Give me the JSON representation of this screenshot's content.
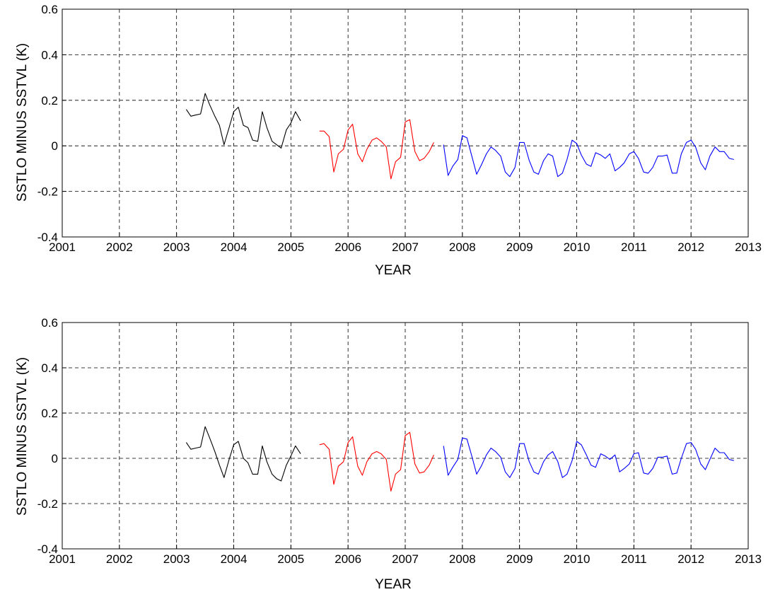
{
  "colors": {
    "series_2003_2005": "#000000",
    "series_2005_2007": "#ff0000",
    "series_2007_2012": "#0000ff",
    "grid": "#000000",
    "background": "#ffffff"
  },
  "chart_data": [
    {
      "type": "line",
      "title": "",
      "xlabel": "YEAR",
      "ylabel": "SSTLO MINUS  SSTVL  (K)",
      "xlim": [
        2001,
        2013
      ],
      "ylim": [
        -0.4,
        0.6
      ],
      "x_ticks": [
        2001,
        2002,
        2003,
        2004,
        2005,
        2006,
        2007,
        2008,
        2009,
        2010,
        2011,
        2012,
        2013
      ],
      "x_tick_labels": [
        "2001",
        "2002",
        "2003",
        "2004",
        "2005",
        "2006",
        "2007",
        "2008",
        "2009",
        "2010",
        "2011",
        "2012",
        "2013"
      ],
      "y_ticks": [
        -0.4,
        -0.2,
        0,
        0.2,
        0.4,
        0.6
      ],
      "y_tick_labels": [
        "-0.4",
        "-0.2",
        "0",
        "0.2",
        "0.4",
        "0.6"
      ],
      "grid": true,
      "grid_style": "dashed",
      "series": [
        {
          "color": "#000000",
          "x": [
            2003.17,
            2003.25,
            2003.33,
            2003.42,
            2003.5,
            2003.58,
            2003.67,
            2003.75,
            2003.83,
            2003.92,
            2004.0,
            2004.08,
            2004.17,
            2004.25,
            2004.33,
            2004.42,
            2004.5,
            2004.58,
            2004.67,
            2004.75,
            2004.83,
            2004.92,
            2005.0,
            2005.08,
            2005.17
          ],
          "y": [
            0.16,
            0.13,
            0.135,
            0.14,
            0.23,
            0.18,
            0.13,
            0.09,
            0.005,
            0.08,
            0.15,
            0.17,
            0.09,
            0.08,
            0.025,
            0.02,
            0.15,
            0.08,
            0.02,
            0.005,
            -0.01,
            0.07,
            0.1,
            0.15,
            0.11
          ]
        },
        {
          "color": "#ff0000",
          "x": [
            2005.5,
            2005.58,
            2005.67,
            2005.75,
            2005.83,
            2005.92,
            2006.0,
            2006.08,
            2006.17,
            2006.25,
            2006.33,
            2006.42,
            2006.5,
            2006.58,
            2006.67,
            2006.75,
            2006.83,
            2006.92,
            2007.0,
            2007.08,
            2007.17,
            2007.25,
            2007.33,
            2007.42,
            2007.5
          ],
          "y": [
            0.065,
            0.065,
            0.04,
            -0.115,
            -0.035,
            -0.015,
            0.07,
            0.095,
            -0.035,
            -0.07,
            -0.015,
            0.025,
            0.035,
            0.02,
            -0.005,
            -0.145,
            -0.07,
            -0.05,
            0.105,
            0.115,
            -0.025,
            -0.065,
            -0.055,
            -0.025,
            0.015
          ]
        },
        {
          "color": "#0000ff",
          "x": [
            2007.67,
            2007.75,
            2007.83,
            2007.92,
            2008.0,
            2008.08,
            2008.17,
            2008.25,
            2008.33,
            2008.42,
            2008.5,
            2008.58,
            2008.67,
            2008.75,
            2008.83,
            2008.92,
            2009.0,
            2009.08,
            2009.17,
            2009.25,
            2009.33,
            2009.42,
            2009.5,
            2009.58,
            2009.67,
            2009.75,
            2009.83,
            2009.92,
            2010.0,
            2010.08,
            2010.17,
            2010.25,
            2010.33,
            2010.42,
            2010.5,
            2010.58,
            2010.67,
            2010.75,
            2010.83,
            2010.92,
            2011.0,
            2011.08,
            2011.17,
            2011.25,
            2011.33,
            2011.42,
            2011.5,
            2011.58,
            2011.67,
            2011.75,
            2011.83,
            2011.92,
            2012.0,
            2012.08,
            2012.17,
            2012.25,
            2012.33,
            2012.42,
            2012.5,
            2012.58,
            2012.67,
            2012.75
          ],
          "y": [
            0.005,
            -0.13,
            -0.09,
            -0.06,
            0.045,
            0.035,
            -0.05,
            -0.125,
            -0.085,
            -0.035,
            -0.005,
            -0.02,
            -0.045,
            -0.115,
            -0.135,
            -0.095,
            0.015,
            0.015,
            -0.065,
            -0.115,
            -0.125,
            -0.065,
            -0.035,
            -0.045,
            -0.135,
            -0.12,
            -0.06,
            0.025,
            0.01,
            -0.04,
            -0.08,
            -0.09,
            -0.03,
            -0.04,
            -0.055,
            -0.035,
            -0.11,
            -0.095,
            -0.075,
            -0.035,
            -0.025,
            -0.055,
            -0.115,
            -0.12,
            -0.095,
            -0.045,
            -0.045,
            -0.04,
            -0.12,
            -0.12,
            -0.035,
            0.015,
            0.025,
            -0.005,
            -0.075,
            -0.105,
            -0.045,
            -0.005,
            -0.025,
            -0.025,
            -0.055,
            -0.06
          ]
        }
      ]
    },
    {
      "type": "line",
      "title": "",
      "xlabel": "YEAR",
      "ylabel": "SSTLO MINUS  SSTVL  (K)",
      "xlim": [
        2001,
        2013
      ],
      "ylim": [
        -0.4,
        0.6
      ],
      "x_ticks": [
        2001,
        2002,
        2003,
        2004,
        2005,
        2006,
        2007,
        2008,
        2009,
        2010,
        2011,
        2012,
        2013
      ],
      "x_tick_labels": [
        "2001",
        "2002",
        "2003",
        "2004",
        "2005",
        "2006",
        "2007",
        "2008",
        "2009",
        "2010",
        "2011",
        "2012",
        "2013"
      ],
      "y_ticks": [
        -0.4,
        -0.2,
        0,
        0.2,
        0.4,
        0.6
      ],
      "y_tick_labels": [
        "-0.4",
        "-0.2",
        "0",
        "0.2",
        "0.4",
        "0.6"
      ],
      "grid": true,
      "grid_style": "dashed",
      "series": [
        {
          "color": "#000000",
          "x": [
            2003.17,
            2003.25,
            2003.33,
            2003.42,
            2003.5,
            2003.58,
            2003.67,
            2003.75,
            2003.83,
            2003.92,
            2004.0,
            2004.08,
            2004.17,
            2004.25,
            2004.33,
            2004.42,
            2004.5,
            2004.58,
            2004.67,
            2004.75,
            2004.83,
            2004.92,
            2005.0,
            2005.08,
            2005.17
          ],
          "y": [
            0.07,
            0.04,
            0.045,
            0.05,
            0.14,
            0.09,
            0.03,
            -0.03,
            -0.085,
            -0.005,
            0.06,
            0.075,
            0.0,
            -0.02,
            -0.07,
            -0.07,
            0.055,
            -0.015,
            -0.07,
            -0.09,
            -0.1,
            -0.03,
            0.01,
            0.055,
            0.02
          ]
        },
        {
          "color": "#ff0000",
          "x": [
            2005.5,
            2005.58,
            2005.67,
            2005.75,
            2005.83,
            2005.92,
            2006.0,
            2006.08,
            2006.17,
            2006.25,
            2006.33,
            2006.42,
            2006.5,
            2006.58,
            2006.67,
            2006.75,
            2006.83,
            2006.92,
            2007.0,
            2007.08,
            2007.17,
            2007.25,
            2007.33,
            2007.42,
            2007.5
          ],
          "y": [
            0.06,
            0.065,
            0.04,
            -0.115,
            -0.035,
            -0.015,
            0.07,
            0.095,
            -0.035,
            -0.075,
            -0.015,
            0.02,
            0.03,
            0.02,
            -0.005,
            -0.145,
            -0.07,
            -0.05,
            0.1,
            0.115,
            -0.025,
            -0.065,
            -0.06,
            -0.03,
            0.015
          ]
        },
        {
          "color": "#0000ff",
          "x": [
            2007.67,
            2007.75,
            2007.83,
            2007.92,
            2008.0,
            2008.08,
            2008.17,
            2008.25,
            2008.33,
            2008.42,
            2008.5,
            2008.58,
            2008.67,
            2008.75,
            2008.83,
            2008.92,
            2009.0,
            2009.08,
            2009.17,
            2009.25,
            2009.33,
            2009.42,
            2009.5,
            2009.58,
            2009.67,
            2009.75,
            2009.83,
            2009.92,
            2010.0,
            2010.08,
            2010.17,
            2010.25,
            2010.33,
            2010.42,
            2010.5,
            2010.58,
            2010.67,
            2010.75,
            2010.83,
            2010.92,
            2011.0,
            2011.08,
            2011.17,
            2011.25,
            2011.33,
            2011.42,
            2011.5,
            2011.58,
            2011.67,
            2011.75,
            2011.83,
            2011.92,
            2012.0,
            2012.08,
            2012.17,
            2012.25,
            2012.33,
            2012.42,
            2012.5,
            2012.58,
            2012.67,
            2012.75
          ],
          "y": [
            0.055,
            -0.075,
            -0.04,
            -0.005,
            0.09,
            0.085,
            0.005,
            -0.07,
            -0.035,
            0.015,
            0.045,
            0.03,
            0.005,
            -0.06,
            -0.085,
            -0.045,
            0.065,
            0.065,
            -0.015,
            -0.06,
            -0.07,
            -0.015,
            0.015,
            0.03,
            -0.015,
            -0.085,
            -0.07,
            -0.01,
            0.075,
            0.06,
            0.015,
            -0.03,
            -0.04,
            0.02,
            0.01,
            -0.005,
            0.015,
            -0.06,
            -0.045,
            -0.025,
            0.02,
            0.025,
            -0.065,
            -0.07,
            -0.045,
            0.005,
            0.005,
            0.01,
            -0.07,
            -0.065,
            0.0,
            0.065,
            0.07,
            0.04,
            -0.025,
            -0.05,
            -0.005,
            0.045,
            0.025,
            0.025,
            -0.005,
            -0.01
          ]
        }
      ]
    }
  ]
}
